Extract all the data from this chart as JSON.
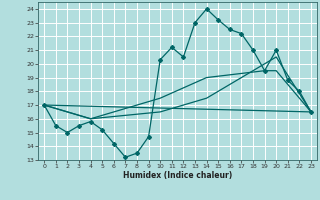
{
  "xlabel": "Humidex (Indice chaleur)",
  "xlim": [
    -0.5,
    23.5
  ],
  "ylim": [
    13,
    24.5
  ],
  "yticks": [
    13,
    14,
    15,
    16,
    17,
    18,
    19,
    20,
    21,
    22,
    23,
    24
  ],
  "xticks": [
    0,
    1,
    2,
    3,
    4,
    5,
    6,
    7,
    8,
    9,
    10,
    11,
    12,
    13,
    14,
    15,
    16,
    17,
    18,
    19,
    20,
    21,
    22,
    23
  ],
  "bg_color": "#b2dede",
  "grid_color": "#ffffff",
  "line_color": "#006666",
  "lines": [
    {
      "x": [
        0,
        1,
        2,
        3,
        4,
        5,
        6,
        7,
        8,
        9,
        10,
        11,
        12,
        13,
        14,
        15,
        16,
        17,
        18,
        19,
        20,
        21,
        22,
        23
      ],
      "y": [
        17,
        15.5,
        15.0,
        15.5,
        15.8,
        15.2,
        14.2,
        13.2,
        13.5,
        14.7,
        20.3,
        21.2,
        20.5,
        23.0,
        24.0,
        23.2,
        22.5,
        22.2,
        21.0,
        19.5,
        21.0,
        18.8,
        18.0,
        16.5
      ],
      "marker": "D",
      "markersize": 2.0,
      "linewidth": 0.9
    },
    {
      "x": [
        0,
        23
      ],
      "y": [
        17,
        16.5
      ],
      "marker": null,
      "markersize": 0,
      "linewidth": 0.9
    },
    {
      "x": [
        0,
        4,
        10,
        14,
        19,
        20,
        23
      ],
      "y": [
        17,
        16.0,
        17.5,
        19.0,
        19.5,
        19.5,
        16.5
      ],
      "marker": null,
      "markersize": 0,
      "linewidth": 0.9
    },
    {
      "x": [
        0,
        4,
        10,
        14,
        20,
        23
      ],
      "y": [
        17,
        16.0,
        16.5,
        17.5,
        20.5,
        16.5
      ],
      "marker": null,
      "markersize": 0,
      "linewidth": 0.9
    }
  ]
}
